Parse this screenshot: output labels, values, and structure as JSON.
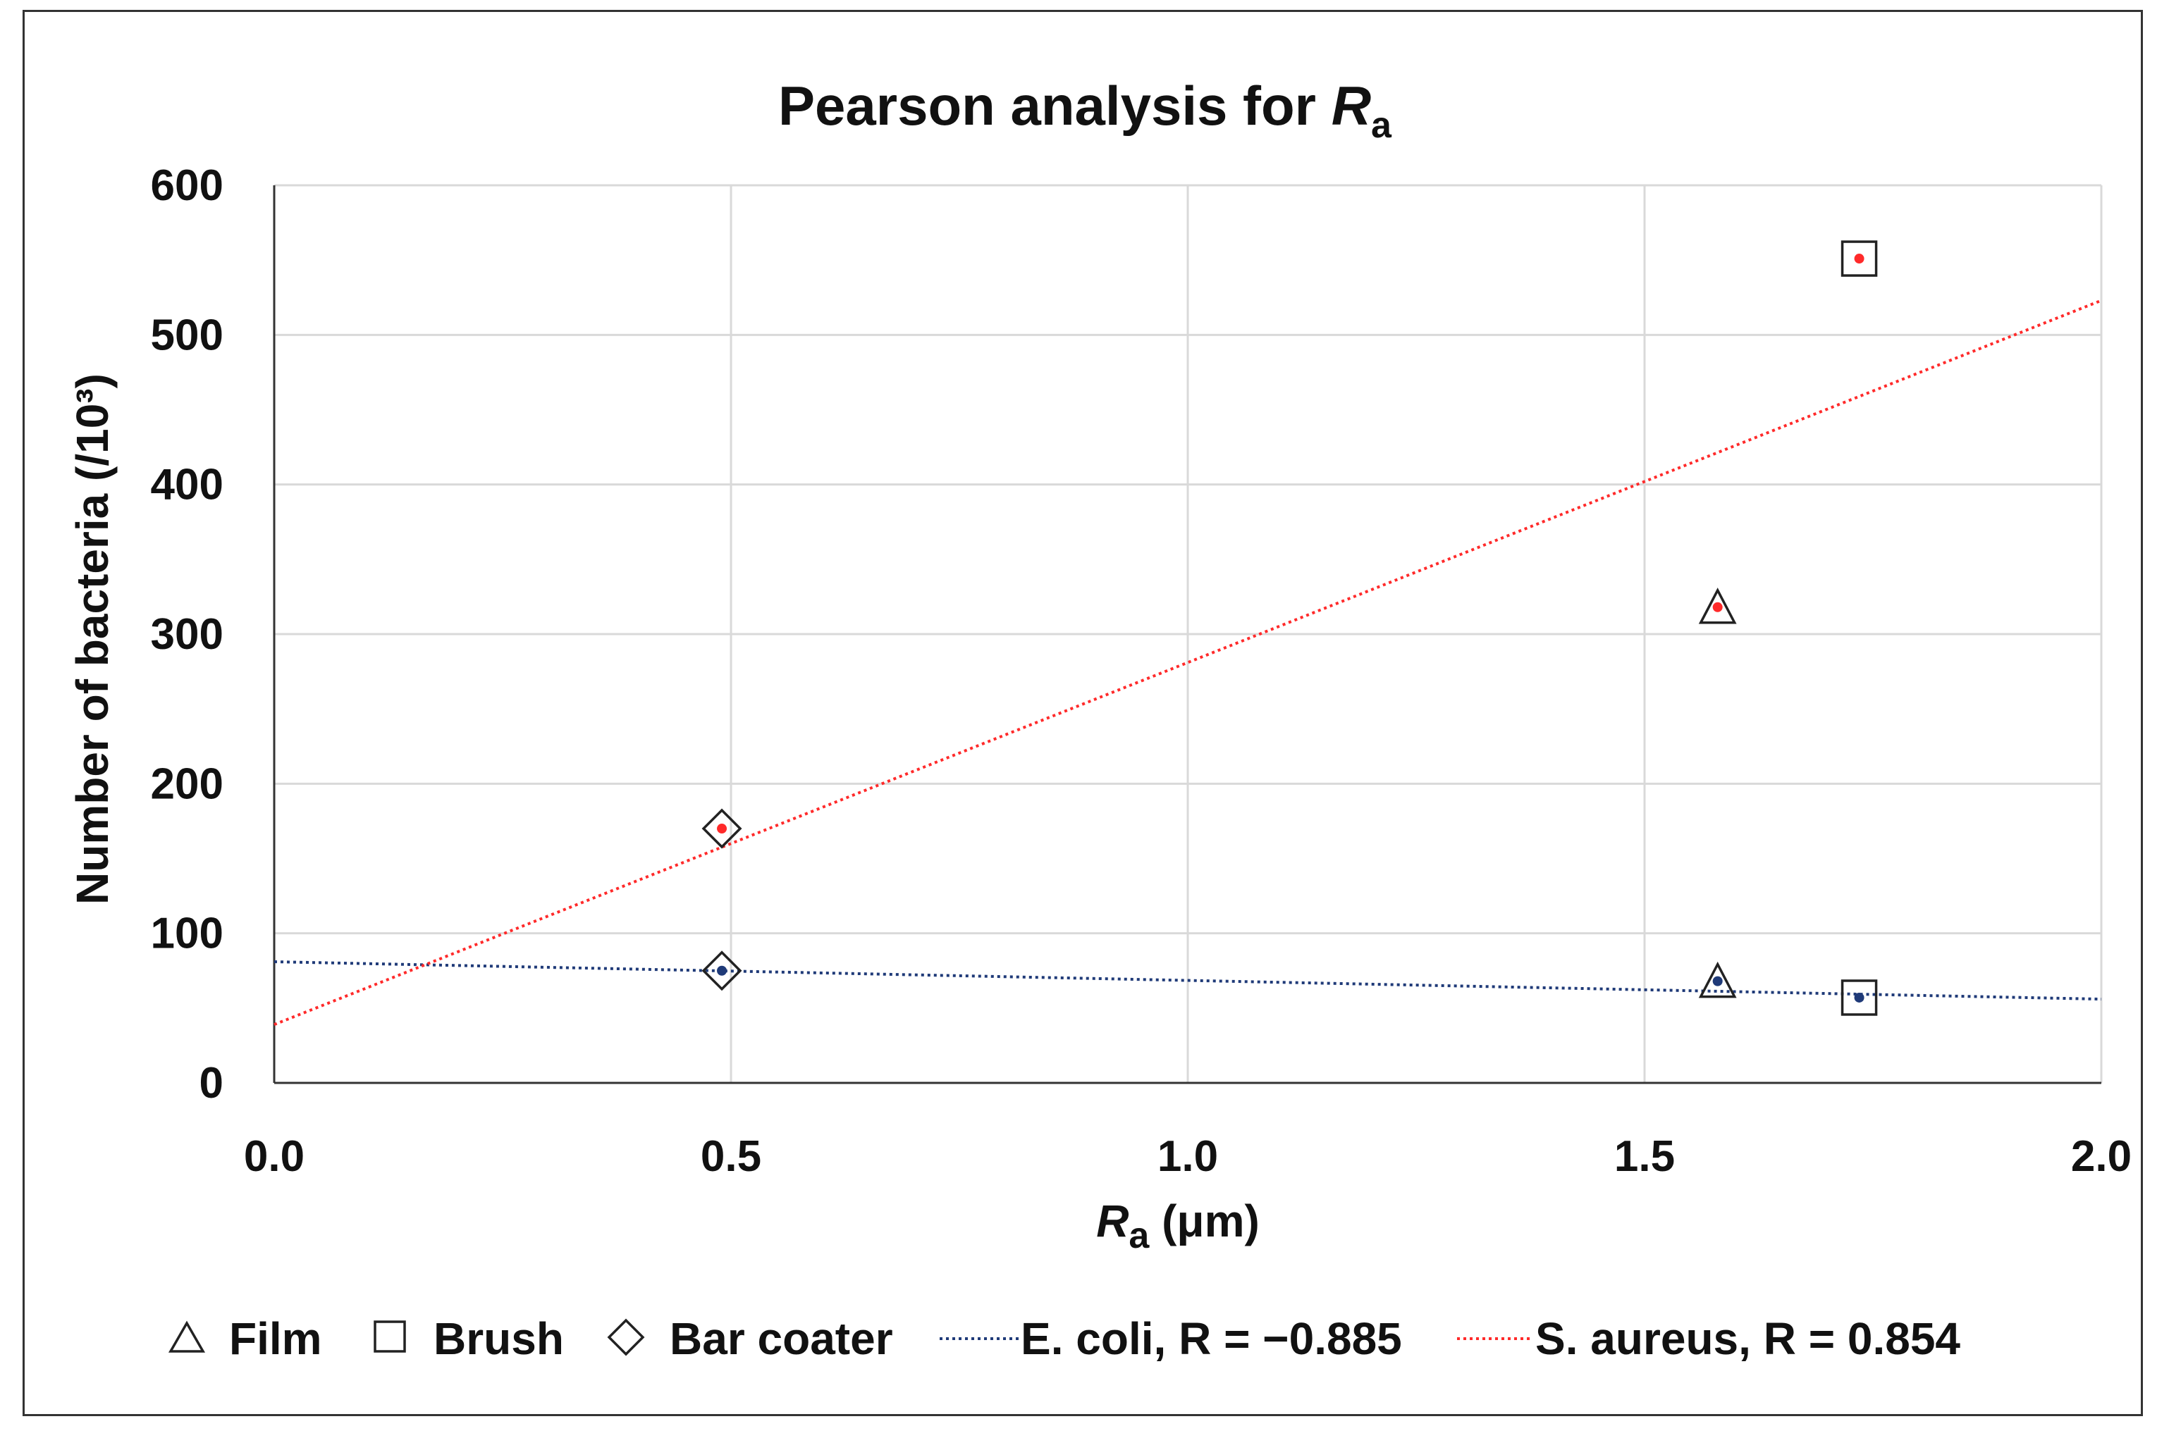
{
  "chart_data": {
    "type": "scatter",
    "title": "Pearson analysis for ",
    "title_italic": "R",
    "title_sub": "a",
    "xlabel_italic": "R",
    "xlabel_sub": "a",
    "xlabel_rest": " (μm)",
    "ylabel": "Number of bacteria (/10³)",
    "xlim": [
      0.0,
      2.0
    ],
    "ylim": [
      0,
      600
    ],
    "x_ticks": [
      0.0,
      0.5,
      1.0,
      1.5,
      2.0
    ],
    "x_tick_labels": [
      "0.0",
      "0.5",
      "1.0",
      "1.5",
      "2.0"
    ],
    "y_ticks": [
      0,
      100,
      200,
      300,
      400,
      500,
      600
    ],
    "y_tick_labels": [
      "0",
      "100",
      "200",
      "300",
      "400",
      "500",
      "600"
    ],
    "grid": true,
    "markers": [
      {
        "shape": "triangle",
        "label": "Film"
      },
      {
        "shape": "square",
        "label": "Brush"
      },
      {
        "shape": "diamond",
        "label": "Bar coater"
      }
    ],
    "series": [
      {
        "name": "E. coli",
        "legend_label": "E. coli, R = −0.885",
        "color": "#1f3a78",
        "points": [
          {
            "x": 0.49,
            "y": 75,
            "marker": "diamond"
          },
          {
            "x": 1.58,
            "y": 68,
            "marker": "triangle"
          },
          {
            "x": 1.735,
            "y": 57,
            "marker": "square"
          }
        ],
        "trendline": {
          "x": [
            0.0,
            2.0
          ],
          "y": [
            81,
            56
          ]
        }
      },
      {
        "name": "S. aureus",
        "legend_label": "S. aureus, R = 0.854",
        "color": "#ff2a2a",
        "points": [
          {
            "x": 0.49,
            "y": 170,
            "marker": "diamond"
          },
          {
            "x": 1.58,
            "y": 318,
            "marker": "triangle"
          },
          {
            "x": 1.735,
            "y": 551,
            "marker": "square"
          }
        ],
        "trendline": {
          "x": [
            0.0,
            2.0
          ],
          "y": [
            39,
            523
          ]
        }
      }
    ],
    "legend_position": "bottom"
  }
}
